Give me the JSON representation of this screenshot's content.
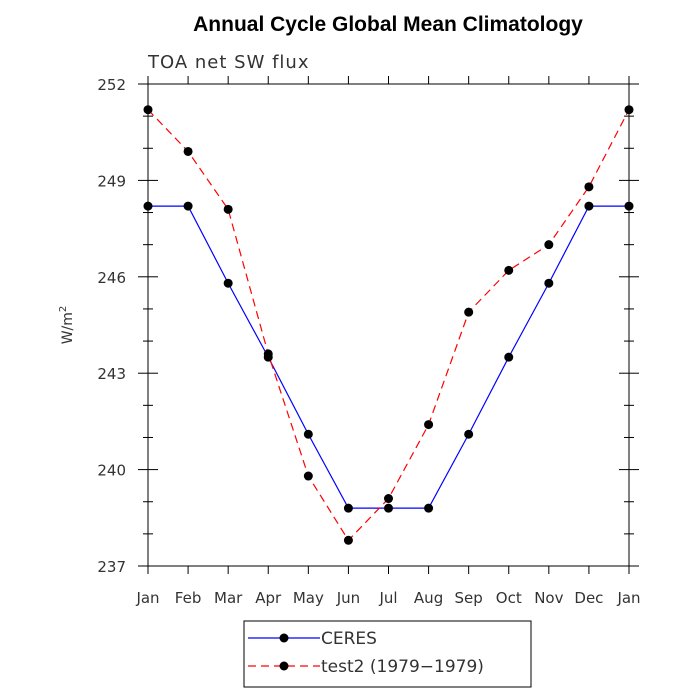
{
  "chart_data": {
    "type": "line",
    "title": "Annual Cycle Global Mean Climatology",
    "subtitle": "TOA net SW flux",
    "ylabel": "W/m",
    "ylabel_superscript": "2",
    "categories": [
      "Jan",
      "Feb",
      "Mar",
      "Apr",
      "May",
      "Jun",
      "Jul",
      "Aug",
      "Sep",
      "Oct",
      "Nov",
      "Dec",
      "Jan"
    ],
    "ylim": [
      237,
      252
    ],
    "yticks": [
      237,
      240,
      243,
      246,
      249,
      252
    ],
    "grid": false,
    "legend_position": "bottom",
    "series": [
      {
        "name": "CERES",
        "color": "#0000ff",
        "dash": "solid",
        "values": [
          248.2,
          248.2,
          245.8,
          243.5,
          241.1,
          238.8,
          238.8,
          238.8,
          241.1,
          243.5,
          245.8,
          248.2,
          248.2
        ]
      },
      {
        "name": "test2 (1979−1979)",
        "color": "#ff0000",
        "dash": "dashed",
        "values": [
          251.2,
          249.9,
          248.1,
          243.6,
          239.8,
          237.8,
          239.1,
          241.4,
          244.9,
          246.2,
          247.0,
          248.8,
          251.2
        ]
      }
    ]
  }
}
